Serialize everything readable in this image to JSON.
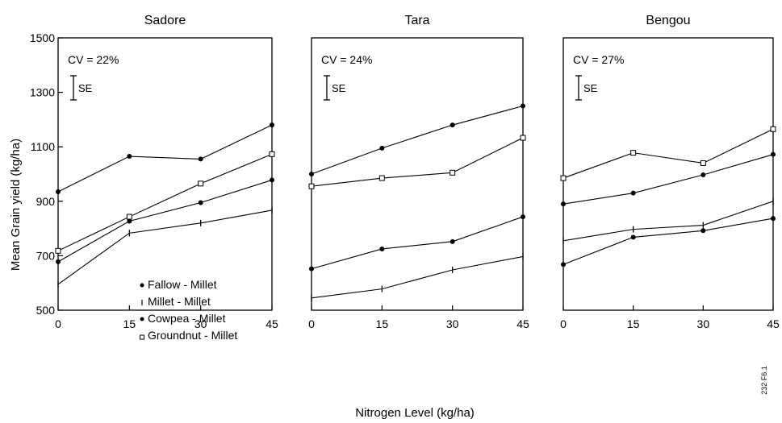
{
  "figure": {
    "ylabel": "Mean Grain yield (kg/ha)",
    "xlabel": "Nitrogen Level (kg/ha)",
    "fig_code": "232 F6.1",
    "se_label": "SE"
  },
  "chart_data": [
    {
      "type": "line",
      "title": "Sadore",
      "annotation": "CV = 22%",
      "x": [
        0,
        15,
        30,
        45
      ],
      "ylim": [
        500,
        1500
      ],
      "yticks": [
        500,
        700,
        900,
        1100,
        1300,
        1500
      ],
      "xticks": [
        0,
        15,
        30,
        45
      ],
      "legend_position": "bottom-right",
      "series": [
        {
          "name": "Fallow - Millet",
          "marker": "dot",
          "values": [
            935,
            1065,
            1055,
            1180
          ]
        },
        {
          "name": "Groundnut - Millet",
          "marker": "square",
          "values": [
            718,
            843,
            965,
            1073
          ]
        },
        {
          "name": "Cowpea - Millet",
          "marker": "dot",
          "values": [
            678,
            827,
            895,
            978
          ]
        },
        {
          "name": "Millet - Millet",
          "marker": "tick",
          "values": [
            595,
            783,
            820,
            867
          ]
        }
      ]
    },
    {
      "type": "line",
      "title": "Tara",
      "annotation": "CV = 24%",
      "x": [
        0,
        15,
        30,
        45
      ],
      "ylim": [
        500,
        1500
      ],
      "xticks": [
        0,
        15,
        30,
        45
      ],
      "series": [
        {
          "name": "Fallow - Millet",
          "marker": "dot",
          "values": [
            1000,
            1095,
            1180,
            1250
          ]
        },
        {
          "name": "Groundnut - Millet",
          "marker": "square",
          "values": [
            955,
            985,
            1005,
            1133
          ]
        },
        {
          "name": "Cowpea - Millet",
          "marker": "dot",
          "values": [
            652,
            725,
            752,
            843
          ]
        },
        {
          "name": "Millet - Millet",
          "marker": "tick",
          "values": [
            545,
            578,
            648,
            697
          ]
        }
      ]
    },
    {
      "type": "line",
      "title": "Bengou",
      "annotation": "CV = 27%",
      "x": [
        0,
        15,
        30,
        45
      ],
      "ylim": [
        500,
        1500
      ],
      "xticks": [
        0,
        15,
        30,
        45
      ],
      "series": [
        {
          "name": "Groundnut - Millet",
          "marker": "square",
          "values": [
            985,
            1078,
            1040,
            1165
          ]
        },
        {
          "name": "Fallow - Millet",
          "marker": "dot",
          "values": [
            890,
            930,
            997,
            1072
          ]
        },
        {
          "name": "Millet - Millet",
          "marker": "tick",
          "values": [
            755,
            797,
            812,
            900
          ]
        },
        {
          "name": "Cowpea - Millet",
          "marker": "dot",
          "values": [
            668,
            768,
            792,
            837
          ]
        }
      ]
    }
  ]
}
